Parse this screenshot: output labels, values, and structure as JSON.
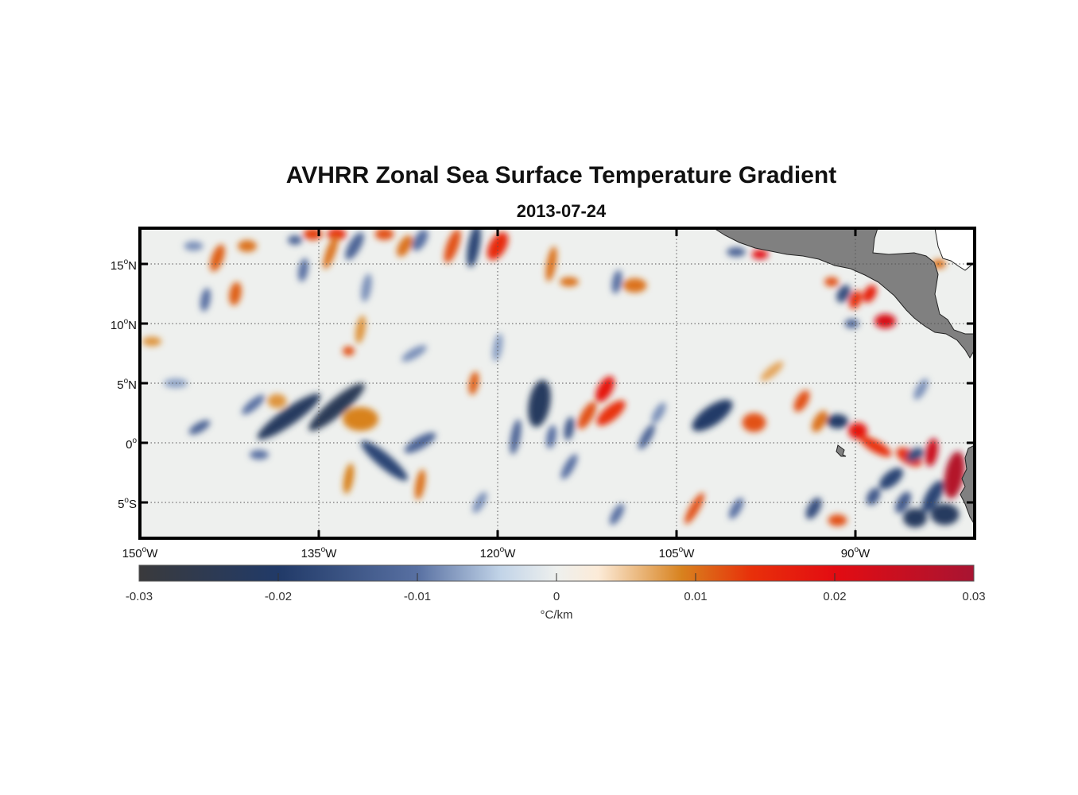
{
  "title": "AVHRR Zonal Sea Surface Temperature Gradient",
  "subtitle": "2013-07-24",
  "map": {
    "lon_range": [
      -150,
      -80
    ],
    "lat_range": [
      -8,
      18
    ],
    "lat_ticks": [
      {
        "value": 15,
        "deg": "15",
        "hem": "N"
      },
      {
        "value": 10,
        "deg": "10",
        "hem": "N"
      },
      {
        "value": 5,
        "deg": "5",
        "hem": "N"
      },
      {
        "value": 0,
        "deg": "0",
        "hem": ""
      },
      {
        "value": -5,
        "deg": "5",
        "hem": "S"
      }
    ],
    "lon_ticks": [
      {
        "value": -150,
        "deg": "150",
        "hem": "W"
      },
      {
        "value": -135,
        "deg": "135",
        "hem": "W"
      },
      {
        "value": -120,
        "deg": "120",
        "hem": "W"
      },
      {
        "value": -105,
        "deg": "105",
        "hem": "W"
      },
      {
        "value": -90,
        "deg": "90",
        "hem": "W"
      }
    ],
    "land_color": "#808080",
    "ocean_color": "#eef0ee",
    "features": [
      {
        "lon": -137.5,
        "lat": 2.2,
        "v": -0.022,
        "a": 3.2,
        "b": 0.7,
        "rot": 35
      },
      {
        "lon": -133.5,
        "lat": 3.0,
        "v": -0.024,
        "a": 3.0,
        "b": 0.7,
        "rot": 40
      },
      {
        "lon": -131.5,
        "lat": 2.0,
        "v": 0.009,
        "a": 1.5,
        "b": 1.0,
        "rot": 0
      },
      {
        "lon": -129.5,
        "lat": -1.5,
        "v": -0.018,
        "a": 2.5,
        "b": 0.6,
        "rot": -40
      },
      {
        "lon": -126.5,
        "lat": 0.0,
        "v": -0.012,
        "a": 1.5,
        "b": 0.5,
        "rot": 30
      },
      {
        "lon": -138.5,
        "lat": 3.5,
        "v": 0.008,
        "a": 0.8,
        "b": 0.6,
        "rot": 0
      },
      {
        "lon": -145.0,
        "lat": 1.3,
        "v": -0.012,
        "a": 1.0,
        "b": 0.4,
        "rot": 30
      },
      {
        "lon": -140.5,
        "lat": 3.2,
        "v": -0.01,
        "a": 1.2,
        "b": 0.4,
        "rot": 40
      },
      {
        "lon": -135.5,
        "lat": 17.5,
        "v": 0.013,
        "a": 0.8,
        "b": 0.5,
        "rot": 0
      },
      {
        "lon": -133.5,
        "lat": 17.5,
        "v": 0.015,
        "a": 0.8,
        "b": 0.5,
        "rot": 0
      },
      {
        "lon": -129.5,
        "lat": 17.5,
        "v": 0.012,
        "a": 0.8,
        "b": 0.5,
        "rot": 0
      },
      {
        "lon": -123.8,
        "lat": 16.5,
        "v": 0.012,
        "a": 1.5,
        "b": 0.5,
        "rot": 70
      },
      {
        "lon": -122.0,
        "lat": 16.5,
        "v": -0.018,
        "a": 1.8,
        "b": 0.5,
        "rot": 80
      },
      {
        "lon": -120.0,
        "lat": 16.5,
        "v": 0.015,
        "a": 1.3,
        "b": 0.7,
        "rot": 60
      },
      {
        "lon": -132.0,
        "lat": 16.5,
        "v": -0.012,
        "a": 1.3,
        "b": 0.5,
        "rot": 60
      },
      {
        "lon": -127.8,
        "lat": 16.5,
        "v": 0.01,
        "a": 1.0,
        "b": 0.5,
        "rot": 60
      },
      {
        "lon": -126.5,
        "lat": 17.0,
        "v": -0.01,
        "a": 1.0,
        "b": 0.5,
        "rot": 60
      },
      {
        "lon": -143.5,
        "lat": 15.5,
        "v": 0.011,
        "a": 1.2,
        "b": 0.5,
        "rot": 70
      },
      {
        "lon": -141.0,
        "lat": 16.5,
        "v": 0.01,
        "a": 0.8,
        "b": 0.5,
        "rot": 0
      },
      {
        "lon": -145.5,
        "lat": 16.5,
        "v": -0.008,
        "a": 0.8,
        "b": 0.4,
        "rot": 0
      },
      {
        "lon": -142.0,
        "lat": 12.5,
        "v": 0.011,
        "a": 1.0,
        "b": 0.5,
        "rot": 80
      },
      {
        "lon": -144.5,
        "lat": 12.0,
        "v": -0.01,
        "a": 1.0,
        "b": 0.4,
        "rot": 80
      },
      {
        "lon": -137.0,
        "lat": 17.0,
        "v": -0.012,
        "a": 0.6,
        "b": 0.4,
        "rot": 0
      },
      {
        "lon": -136.3,
        "lat": 14.5,
        "v": -0.01,
        "a": 1.0,
        "b": 0.4,
        "rot": 80
      },
      {
        "lon": -131.0,
        "lat": 13.0,
        "v": -0.008,
        "a": 1.2,
        "b": 0.4,
        "rot": 80
      },
      {
        "lon": -131.5,
        "lat": 9.5,
        "v": 0.008,
        "a": 1.2,
        "b": 0.4,
        "rot": 80
      },
      {
        "lon": -132.5,
        "lat": 7.7,
        "v": 0.012,
        "a": 0.5,
        "b": 0.4,
        "rot": 0
      },
      {
        "lon": -134.0,
        "lat": 16.0,
        "v": 0.01,
        "a": 1.5,
        "b": 0.4,
        "rot": 70
      },
      {
        "lon": -115.5,
        "lat": 15.0,
        "v": 0.01,
        "a": 1.5,
        "b": 0.4,
        "rot": 80
      },
      {
        "lon": -114.0,
        "lat": 13.5,
        "v": 0.01,
        "a": 0.8,
        "b": 0.4,
        "rot": 0
      },
      {
        "lon": -108.5,
        "lat": 13.2,
        "v": 0.01,
        "a": 1.0,
        "b": 0.6,
        "rot": 0
      },
      {
        "lon": -110.0,
        "lat": 13.5,
        "v": -0.01,
        "a": 1.0,
        "b": 0.4,
        "rot": 80
      },
      {
        "lon": -122.0,
        "lat": 5.0,
        "v": 0.011,
        "a": 1.0,
        "b": 0.4,
        "rot": 80
      },
      {
        "lon": -116.5,
        "lat": 3.3,
        "v": -0.022,
        "a": 2.0,
        "b": 0.9,
        "rot": 80
      },
      {
        "lon": -111.0,
        "lat": 4.5,
        "v": 0.018,
        "a": 1.2,
        "b": 0.6,
        "rot": 60
      },
      {
        "lon": -110.5,
        "lat": 2.5,
        "v": 0.014,
        "a": 1.5,
        "b": 0.6,
        "rot": 40
      },
      {
        "lon": -112.5,
        "lat": 2.3,
        "v": 0.012,
        "a": 1.3,
        "b": 0.5,
        "rot": 60
      },
      {
        "lon": -114.0,
        "lat": 1.2,
        "v": -0.014,
        "a": 1.0,
        "b": 0.4,
        "rot": 80
      },
      {
        "lon": -118.5,
        "lat": 0.5,
        "v": -0.012,
        "a": 1.5,
        "b": 0.4,
        "rot": 80
      },
      {
        "lon": -115.5,
        "lat": 0.5,
        "v": -0.01,
        "a": 1.0,
        "b": 0.4,
        "rot": 80
      },
      {
        "lon": -107.5,
        "lat": 0.5,
        "v": -0.012,
        "a": 1.2,
        "b": 0.4,
        "rot": 60
      },
      {
        "lon": -106.5,
        "lat": 2.5,
        "v": -0.008,
        "a": 1.0,
        "b": 0.4,
        "rot": 60
      },
      {
        "lon": -114.0,
        "lat": -2.0,
        "v": -0.01,
        "a": 1.2,
        "b": 0.4,
        "rot": 60
      },
      {
        "lon": -102.0,
        "lat": 2.3,
        "v": -0.02,
        "a": 2.0,
        "b": 0.8,
        "rot": 35
      },
      {
        "lon": -98.5,
        "lat": 1.7,
        "v": 0.012,
        "a": 1.0,
        "b": 0.8,
        "rot": 0
      },
      {
        "lon": -94.5,
        "lat": 3.5,
        "v": 0.012,
        "a": 1.0,
        "b": 0.5,
        "rot": 60
      },
      {
        "lon": -93.0,
        "lat": 1.8,
        "v": 0.01,
        "a": 1.0,
        "b": 0.5,
        "rot": 60
      },
      {
        "lon": -91.5,
        "lat": 1.8,
        "v": -0.02,
        "a": 0.9,
        "b": 0.6,
        "rot": 0
      },
      {
        "lon": -89.8,
        "lat": 1.0,
        "v": 0.018,
        "a": 0.8,
        "b": 0.7,
        "rot": 0
      },
      {
        "lon": -88.3,
        "lat": -0.3,
        "v": 0.014,
        "a": 1.5,
        "b": 0.5,
        "rot": -30
      },
      {
        "lon": -85.5,
        "lat": -1.2,
        "v": 0.014,
        "a": 1.2,
        "b": 0.6,
        "rot": -30
      },
      {
        "lon": -83.6,
        "lat": -0.8,
        "v": 0.024,
        "a": 1.2,
        "b": 0.5,
        "rot": 80
      },
      {
        "lon": -81.7,
        "lat": -2.7,
        "v": 0.028,
        "a": 2.0,
        "b": 0.8,
        "rot": 80
      },
      {
        "lon": -83.5,
        "lat": -4.5,
        "v": -0.018,
        "a": 1.5,
        "b": 0.6,
        "rot": 60
      },
      {
        "lon": -85.0,
        "lat": -6.3,
        "v": -0.022,
        "a": 1.0,
        "b": 0.8,
        "rot": 0
      },
      {
        "lon": -82.5,
        "lat": -6.0,
        "v": -0.022,
        "a": 1.2,
        "b": 0.9,
        "rot": 0
      },
      {
        "lon": -87.0,
        "lat": -3.0,
        "v": -0.018,
        "a": 1.2,
        "b": 0.6,
        "rot": 40
      },
      {
        "lon": -86.0,
        "lat": -5.0,
        "v": -0.014,
        "a": 1.0,
        "b": 0.5,
        "rot": 60
      },
      {
        "lon": -88.5,
        "lat": -4.5,
        "v": -0.014,
        "a": 0.8,
        "b": 0.5,
        "rot": 60
      },
      {
        "lon": -93.5,
        "lat": -5.5,
        "v": -0.016,
        "a": 1.0,
        "b": 0.5,
        "rot": 60
      },
      {
        "lon": -91.5,
        "lat": -6.5,
        "v": 0.012,
        "a": 0.8,
        "b": 0.5,
        "rot": 0
      },
      {
        "lon": -85.0,
        "lat": -1.0,
        "v": -0.016,
        "a": 0.8,
        "b": 0.5,
        "rot": 30
      },
      {
        "lon": -90.0,
        "lat": 12.0,
        "v": 0.014,
        "a": 0.8,
        "b": 0.5,
        "rot": 70
      },
      {
        "lon": -88.8,
        "lat": 12.5,
        "v": 0.016,
        "a": 0.8,
        "b": 0.5,
        "rot": 60
      },
      {
        "lon": -87.5,
        "lat": 10.2,
        "v": 0.022,
        "a": 0.9,
        "b": 0.6,
        "rot": 0
      },
      {
        "lon": -91.0,
        "lat": 12.5,
        "v": -0.016,
        "a": 0.8,
        "b": 0.5,
        "rot": 60
      },
      {
        "lon": -90.3,
        "lat": 10.0,
        "v": -0.012,
        "a": 0.6,
        "b": 0.4,
        "rot": 0
      },
      {
        "lon": -98.0,
        "lat": 15.8,
        "v": 0.02,
        "a": 0.7,
        "b": 0.4,
        "rot": 0
      },
      {
        "lon": -100.0,
        "lat": 16.0,
        "v": -0.012,
        "a": 0.8,
        "b": 0.4,
        "rot": 0
      },
      {
        "lon": -92.0,
        "lat": 13.5,
        "v": 0.012,
        "a": 0.6,
        "b": 0.4,
        "rot": 0
      },
      {
        "lon": -103.5,
        "lat": -5.5,
        "v": 0.012,
        "a": 1.5,
        "b": 0.4,
        "rot": 60
      },
      {
        "lon": -100.0,
        "lat": -5.5,
        "v": -0.01,
        "a": 1.0,
        "b": 0.4,
        "rot": 60
      },
      {
        "lon": -110.0,
        "lat": -6.0,
        "v": -0.01,
        "a": 1.0,
        "b": 0.4,
        "rot": 60
      },
      {
        "lon": -126.5,
        "lat": -3.5,
        "v": 0.01,
        "a": 1.3,
        "b": 0.4,
        "rot": 80
      },
      {
        "lon": -132.5,
        "lat": -3.0,
        "v": 0.009,
        "a": 1.3,
        "b": 0.4,
        "rot": 80
      },
      {
        "lon": -140.0,
        "lat": -1.0,
        "v": -0.01,
        "a": 0.8,
        "b": 0.4,
        "rot": 0
      },
      {
        "lon": -121.5,
        "lat": -5.0,
        "v": -0.008,
        "a": 1.0,
        "b": 0.4,
        "rot": 60
      },
      {
        "lon": -149.0,
        "lat": 8.5,
        "v": 0.008,
        "a": 0.8,
        "b": 0.4,
        "rot": 0
      },
      {
        "lon": -147.0,
        "lat": 5.0,
        "v": -0.007,
        "a": 1.0,
        "b": 0.4,
        "rot": 0
      },
      {
        "lon": -127.0,
        "lat": 7.5,
        "v": -0.008,
        "a": 1.2,
        "b": 0.4,
        "rot": 30
      },
      {
        "lon": -120.0,
        "lat": 8.0,
        "v": -0.007,
        "a": 1.2,
        "b": 0.4,
        "rot": 80
      },
      {
        "lon": -97.0,
        "lat": 6.0,
        "v": 0.007,
        "a": 1.2,
        "b": 0.4,
        "rot": 40
      },
      {
        "lon": -84.5,
        "lat": 4.5,
        "v": -0.008,
        "a": 1.0,
        "b": 0.4,
        "rot": 60
      },
      {
        "lon": -83.0,
        "lat": 15.0,
        "v": 0.01,
        "a": 0.6,
        "b": 0.4,
        "rot": 0
      }
    ]
  },
  "colorbar": {
    "min": -0.03,
    "max": 0.03,
    "ticks": [
      "-0.03",
      "-0.02",
      "-0.01",
      "0",
      "0.01",
      "0.02",
      "0.03"
    ],
    "tick_values": [
      -0.03,
      -0.02,
      -0.01,
      0,
      0.01,
      0.02,
      0.03
    ],
    "label": "°C/km",
    "colors": [
      {
        "v": -0.03,
        "c": "#3a3a3c"
      },
      {
        "v": -0.02,
        "c": "#213a68"
      },
      {
        "v": -0.01,
        "c": "#5870a2"
      },
      {
        "v": -0.004,
        "c": "#c2d4e8"
      },
      {
        "v": 0,
        "c": "#eef0ee"
      },
      {
        "v": 0.003,
        "c": "#fcebd8"
      },
      {
        "v": 0.009,
        "c": "#d8821e"
      },
      {
        "v": 0.014,
        "c": "#e8300a"
      },
      {
        "v": 0.02,
        "c": "#e30c12"
      },
      {
        "v": 0.03,
        "c": "#a81432"
      }
    ]
  }
}
